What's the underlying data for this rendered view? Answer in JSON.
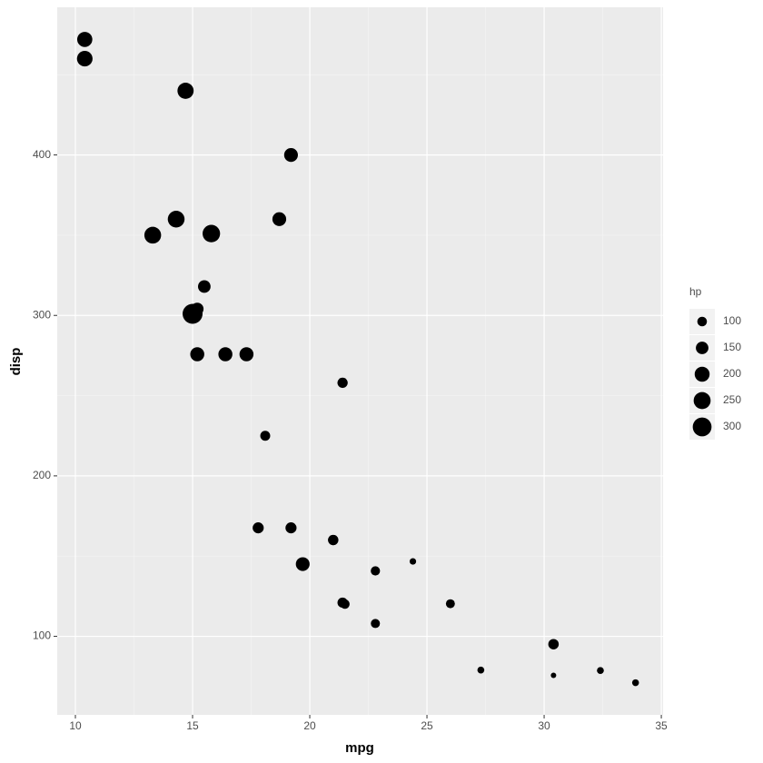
{
  "chart_data": {
    "type": "scatter",
    "x_label": "mpg",
    "y_label": "disp",
    "x": [
      21.0,
      21.0,
      22.8,
      21.4,
      18.7,
      18.1,
      14.3,
      24.4,
      22.8,
      19.2,
      17.8,
      16.4,
      17.3,
      15.2,
      10.4,
      10.4,
      14.7,
      32.4,
      30.4,
      33.9,
      21.5,
      15.5,
      15.2,
      13.3,
      19.2,
      27.3,
      26.0,
      30.4,
      15.8,
      19.7,
      15.0,
      21.4
    ],
    "y": [
      160,
      160,
      108,
      258,
      360,
      225,
      360,
      146.7,
      140.8,
      167.6,
      167.6,
      275.8,
      275.8,
      275.8,
      472,
      460,
      440,
      78.7,
      75.7,
      71.1,
      120.1,
      318,
      304,
      350,
      400,
      79,
      120.3,
      95.1,
      351,
      145,
      301,
      121
    ],
    "size": [
      110,
      110,
      93,
      110,
      175,
      105,
      245,
      62,
      95,
      123,
      123,
      180,
      180,
      180,
      205,
      215,
      230,
      66,
      52,
      65,
      97,
      150,
      150,
      245,
      175,
      66,
      91,
      113,
      264,
      175,
      335,
      109
    ],
    "color": "#000000",
    "xlim": [
      9.225,
      35.075
    ],
    "ylim": [
      51.055,
      492.045
    ],
    "xticks": [
      10,
      15,
      20,
      25,
      30,
      35
    ],
    "yticks": [
      100,
      200,
      300,
      400
    ],
    "x_minor_ticks": [
      12.5,
      17.5,
      22.5,
      27.5,
      32.5
    ],
    "y_minor_ticks": [
      150,
      250,
      350,
      450
    ],
    "grid": true,
    "size_legend": {
      "title": "hp",
      "values": [
        100,
        150,
        200,
        250,
        300
      ]
    }
  }
}
